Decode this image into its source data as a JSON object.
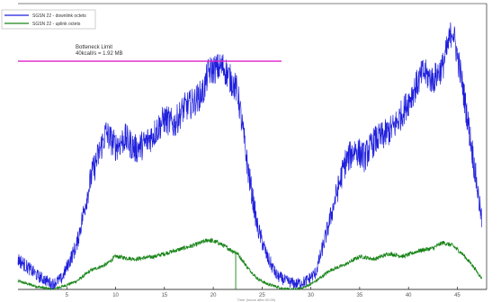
{
  "chart_data": {
    "type": "line",
    "title": "",
    "xlabel": "Time (hours after 00:00)",
    "ylabel": "",
    "xlim": [
      0,
      48
    ],
    "ylim": [
      0,
      1
    ],
    "grid": false,
    "legend_position": "top-left",
    "x_ticks": [
      "5",
      "10",
      "15",
      "20",
      "25",
      "30",
      "35",
      "40",
      "45"
    ],
    "series": [
      {
        "name": "SGSN 22 - downlink octets",
        "color": "#1f1fdc",
        "x": [
          0,
          2,
          3.5,
          4.5,
          6,
          7.5,
          9,
          10,
          11,
          12,
          13,
          14,
          15,
          16,
          17,
          18,
          19,
          19.5,
          20,
          21,
          21.5,
          22.5,
          23.5,
          24.5,
          25.5,
          26.5,
          27.5,
          28.5,
          29.5,
          30.5,
          31.5,
          32.5,
          33.5,
          34.5,
          35.5,
          36.5,
          37.5,
          38.5,
          39.5,
          40.5,
          41.5,
          42.5,
          43.5,
          44.5,
          45.5,
          46.5,
          47.5
        ],
        "values": [
          0.11,
          0.05,
          0.02,
          0.04,
          0.16,
          0.41,
          0.57,
          0.52,
          0.55,
          0.51,
          0.53,
          0.57,
          0.62,
          0.6,
          0.66,
          0.68,
          0.72,
          0.79,
          0.8,
          0.81,
          0.78,
          0.72,
          0.45,
          0.23,
          0.12,
          0.05,
          0.03,
          0.02,
          0.03,
          0.06,
          0.19,
          0.33,
          0.46,
          0.51,
          0.48,
          0.54,
          0.56,
          0.59,
          0.65,
          0.72,
          0.79,
          0.76,
          0.81,
          0.95,
          0.75,
          0.51,
          0.25
        ]
      },
      {
        "name": "SGSN 22 - uplink octets",
        "color": "#178417",
        "x": [
          0,
          2,
          3.5,
          4.5,
          6,
          7.5,
          9,
          10,
          12,
          14,
          16,
          18,
          19.5,
          20.5,
          21.5,
          22.5,
          23.5,
          24.5,
          25.5,
          26.5,
          27.5,
          28.5,
          29.5,
          30.5,
          32,
          33.5,
          35,
          36.5,
          38,
          39.5,
          41,
          42.5,
          43.5,
          44.5,
          45.5,
          46.5,
          47.5
        ],
        "values": [
          0.03,
          0.01,
          0.0,
          0.01,
          0.03,
          0.07,
          0.09,
          0.12,
          0.11,
          0.12,
          0.14,
          0.16,
          0.18,
          0.17,
          0.15,
          0.13,
          0.08,
          0.04,
          0.02,
          0.01,
          0.0,
          0.0,
          0.01,
          0.03,
          0.07,
          0.09,
          0.12,
          0.11,
          0.13,
          0.12,
          0.14,
          0.15,
          0.17,
          0.16,
          0.13,
          0.09,
          0.04
        ]
      }
    ],
    "reference_line": {
      "label_line1": "Botteneck Limit",
      "label_line2": "40kcall/s = 1.92 MB",
      "y": 0.83,
      "x_start": 0,
      "x_end": 27,
      "color": "#e020c8"
    },
    "markers": [
      {
        "x": 22.3,
        "y_from": 0.0,
        "y_to": 0.14,
        "color": "#178417"
      }
    ]
  }
}
